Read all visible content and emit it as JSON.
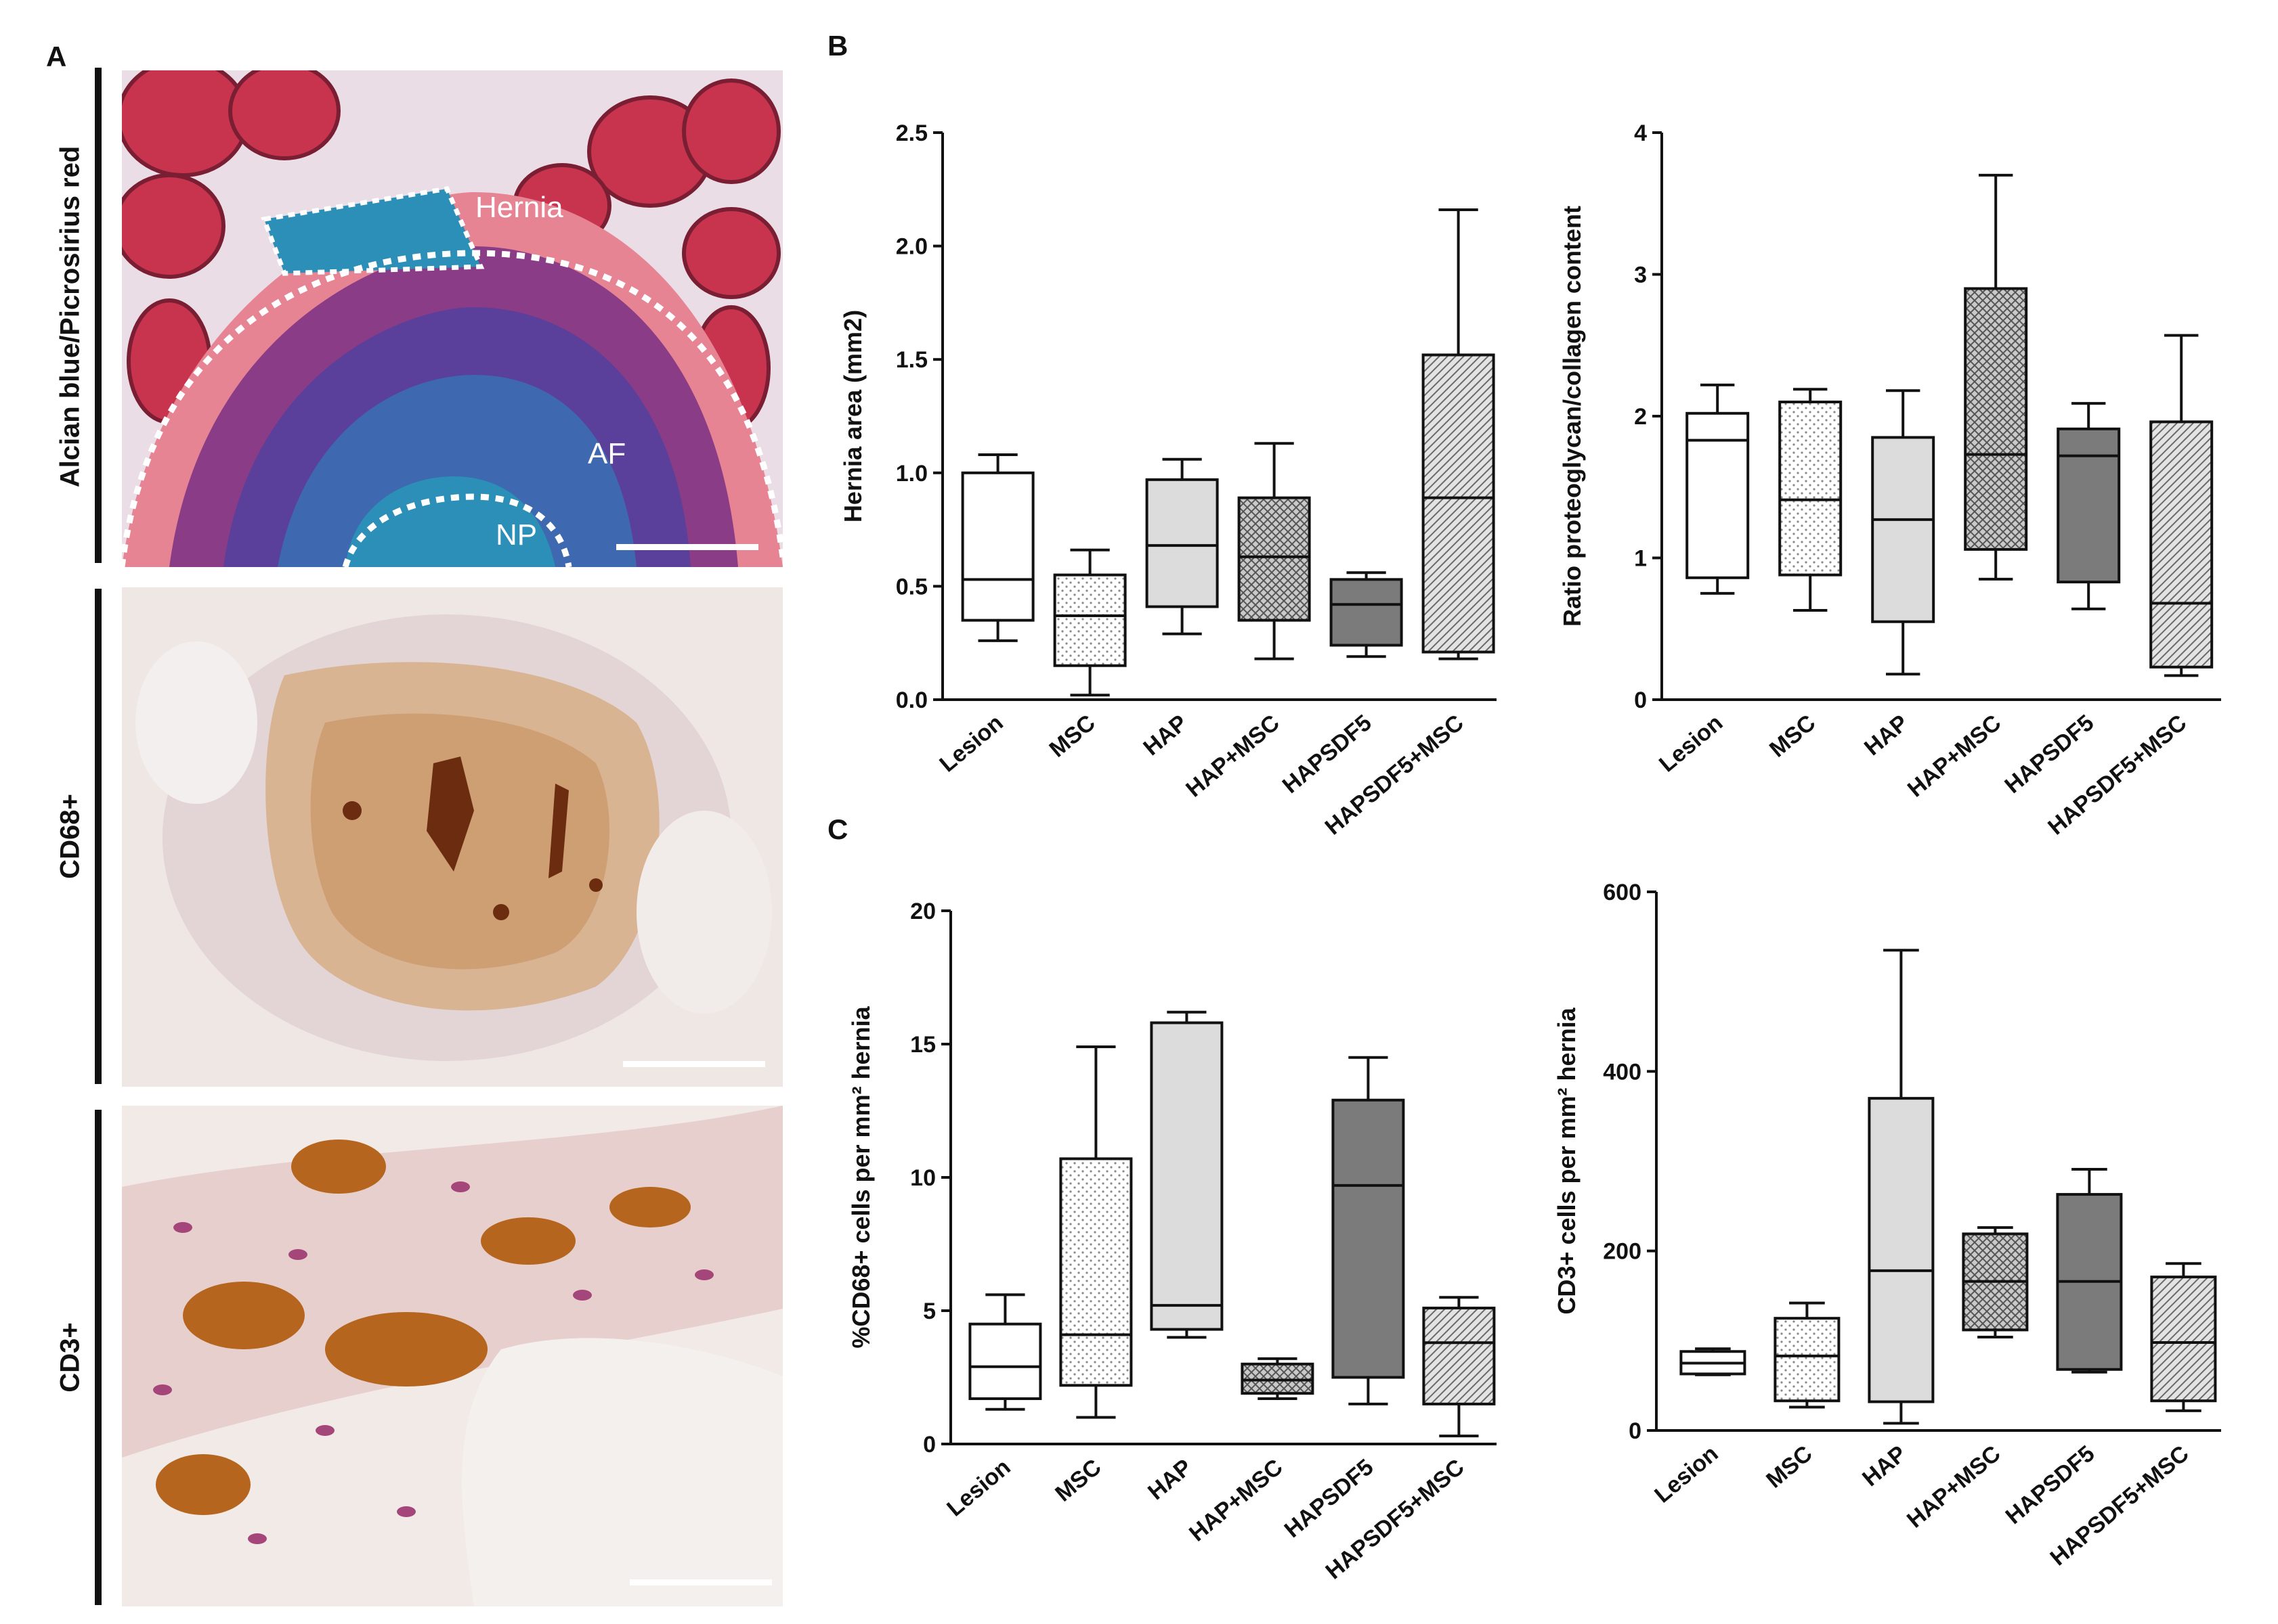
{
  "figure": {
    "panel_a": "A",
    "panel_b": "B",
    "panel_c": "C",
    "row_labels": [
      "Alcian blue/Picrosirius red",
      "CD68+",
      "CD3+"
    ],
    "micro_labels": {
      "hernia": "Hernia",
      "af": "AF",
      "np": "NP"
    }
  },
  "colors": {
    "alcian_blue": "#2b8fb8",
    "picrosirius_red": "#c8344d",
    "dab_brown": "#8a4a1c",
    "box_white": "#ffffff",
    "box_light": "#dcdcdc",
    "box_dark": "#7b7b7b"
  },
  "chart_data": [
    {
      "type": "box",
      "ylabel": "Hernia area (mm2)",
      "ylim": [
        0,
        2.5
      ],
      "yticks": [
        "0.0",
        "0.5",
        "1.0",
        "1.5",
        "2.0",
        "2.5"
      ],
      "categories": [
        "Lesion",
        "MSC",
        "HAP",
        "HAP+MSC",
        "HAPSDF5",
        "HAPSDF5+MSC"
      ],
      "boxes": [
        {
          "min": 0.26,
          "q1": 0.35,
          "median": 0.53,
          "q3": 1.0,
          "max": 1.08
        },
        {
          "min": 0.02,
          "q1": 0.15,
          "median": 0.37,
          "q3": 0.55,
          "max": 0.66
        },
        {
          "min": 0.29,
          "q1": 0.41,
          "median": 0.68,
          "q3": 0.97,
          "max": 1.06
        },
        {
          "min": 0.18,
          "q1": 0.35,
          "median": 0.63,
          "q3": 0.89,
          "max": 1.13
        },
        {
          "min": 0.19,
          "q1": 0.24,
          "median": 0.42,
          "q3": 0.53,
          "max": 0.56
        },
        {
          "min": 0.18,
          "q1": 0.21,
          "median": 0.89,
          "q3": 1.52,
          "max": 2.16
        }
      ]
    },
    {
      "type": "box",
      "ylabel": "Ratio proteoglycan/collagen content",
      "ylim": [
        0,
        4
      ],
      "yticks": [
        "0",
        "1",
        "2",
        "3",
        "4"
      ],
      "categories": [
        "Lesion",
        "MSC",
        "HAP",
        "HAP+MSC",
        "HAPSDF5",
        "HAPSDF5+MSC"
      ],
      "boxes": [
        {
          "min": 0.75,
          "q1": 0.86,
          "median": 1.83,
          "q3": 2.02,
          "max": 2.22
        },
        {
          "min": 0.63,
          "q1": 0.88,
          "median": 1.41,
          "q3": 2.1,
          "max": 2.19
        },
        {
          "min": 0.18,
          "q1": 0.55,
          "median": 1.27,
          "q3": 1.85,
          "max": 2.18
        },
        {
          "min": 0.85,
          "q1": 1.06,
          "median": 1.73,
          "q3": 2.9,
          "max": 3.7
        },
        {
          "min": 0.64,
          "q1": 0.83,
          "median": 1.72,
          "q3": 1.91,
          "max": 2.09
        },
        {
          "min": 0.17,
          "q1": 0.23,
          "median": 0.68,
          "q3": 1.96,
          "max": 2.57
        }
      ]
    },
    {
      "type": "box",
      "ylabel": "%CD68+ cells per mm² hernia",
      "ylim": [
        0,
        20
      ],
      "yticks": [
        "0",
        "5",
        "10",
        "15",
        "20"
      ],
      "categories": [
        "Lesion",
        "MSC",
        "HAP",
        "HAP+MSC",
        "HAPSDF5",
        "HAPSDF5+MSC"
      ],
      "boxes": [
        {
          "min": 1.3,
          "q1": 1.7,
          "median": 2.9,
          "q3": 4.5,
          "max": 5.6
        },
        {
          "min": 1.0,
          "q1": 2.2,
          "median": 4.1,
          "q3": 10.7,
          "max": 14.9
        },
        {
          "min": 4.0,
          "q1": 4.3,
          "median": 5.2,
          "q3": 15.8,
          "max": 16.2
        },
        {
          "min": 1.7,
          "q1": 1.9,
          "median": 2.4,
          "q3": 3.0,
          "max": 3.2
        },
        {
          "min": 1.5,
          "q1": 2.5,
          "median": 9.7,
          "q3": 12.9,
          "max": 14.5
        },
        {
          "min": 0.3,
          "q1": 1.5,
          "median": 3.8,
          "q3": 5.1,
          "max": 5.5
        }
      ]
    },
    {
      "type": "box",
      "ylabel": "CD3+ cells per mm² hernia",
      "ylim": [
        0,
        600
      ],
      "yticks": [
        "0",
        "200",
        "400",
        "600"
      ],
      "categories": [
        "Lesion",
        "MSC",
        "HAP",
        "HAP+MSC",
        "HAPSDF5",
        "HAPSDF5+MSC"
      ],
      "boxes": [
        {
          "min": 62,
          "q1": 63,
          "median": 75,
          "q3": 88,
          "max": 91
        },
        {
          "min": 26,
          "q1": 33,
          "median": 83,
          "q3": 125,
          "max": 142
        },
        {
          "min": 8,
          "q1": 32,
          "median": 178,
          "q3": 370,
          "max": 535
        },
        {
          "min": 104,
          "q1": 112,
          "median": 166,
          "q3": 219,
          "max": 226
        },
        {
          "min": 65,
          "q1": 68,
          "median": 166,
          "q3": 263,
          "max": 291
        },
        {
          "min": 22,
          "q1": 33,
          "median": 98,
          "q3": 171,
          "max": 186
        }
      ]
    }
  ]
}
